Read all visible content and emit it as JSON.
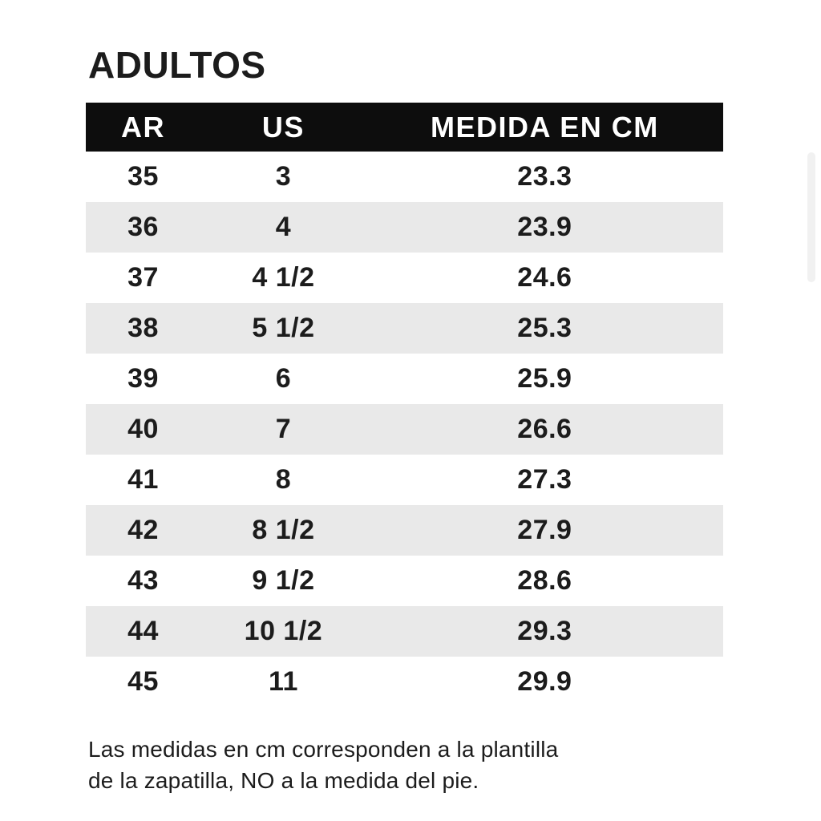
{
  "page": {
    "title": "ADULTOS",
    "note_line1": "Las medidas en cm corresponden a la plantilla",
    "note_line2": "de la zapatilla, NO a la medida del pie.",
    "colors": {
      "background": "#ffffff",
      "header_bg": "#0d0d0d",
      "header_text": "#ffffff",
      "stripe_bg": "#e9e9e9",
      "text": "#1c1c1c",
      "scrollbar": "#f1f1f1"
    }
  },
  "table": {
    "columns": [
      "AR",
      "US",
      "MEDIDA EN CM"
    ],
    "rows": [
      [
        "35",
        "3",
        "23.3"
      ],
      [
        "36",
        "4",
        "23.9"
      ],
      [
        "37",
        "4 1/2",
        "24.6"
      ],
      [
        "38",
        "5 1/2",
        "25.3"
      ],
      [
        "39",
        "6",
        "25.9"
      ],
      [
        "40",
        "7",
        "26.6"
      ],
      [
        "41",
        "8",
        "27.3"
      ],
      [
        "42",
        "8 1/2",
        "27.9"
      ],
      [
        "43",
        "9 1/2",
        "28.6"
      ],
      [
        "44",
        "10 1/2",
        "29.3"
      ],
      [
        "45",
        "11",
        "29.9"
      ]
    ]
  }
}
